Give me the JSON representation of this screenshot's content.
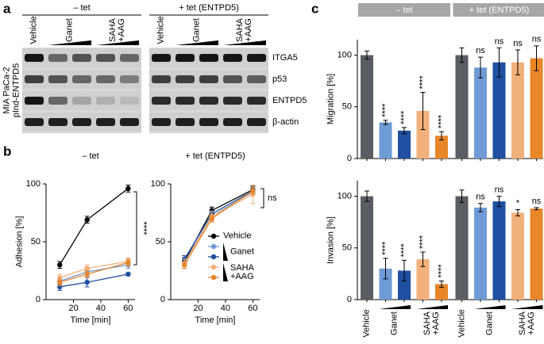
{
  "panel_labels": [
    "a",
    "b",
    "c"
  ],
  "blot": {
    "conditions": [
      "– tet",
      "+ tet (ENTPD5)"
    ],
    "lanes": [
      "Vehicle",
      "Ganet",
      "SAHA\n+AAG"
    ],
    "cell_line": [
      "MIA PaCa-2",
      "pInd-ENTPD5"
    ],
    "proteins": [
      "ITGA5",
      "p53",
      "ENTPD5",
      "β-actin"
    ]
  },
  "chart_data": [
    {
      "type": "line",
      "title": "– tet",
      "xlabel": "Time [min]",
      "ylabel": "Adhesion [%]",
      "x": [
        10,
        30,
        60
      ],
      "xlim": [
        0,
        65
      ],
      "xticks": [
        20,
        40,
        60
      ],
      "ylim": [
        0,
        100
      ],
      "yticks": [
        0,
        50,
        100
      ],
      "series": [
        {
          "name": "Vehicle",
          "color": "#000000",
          "values": [
            30,
            69,
            96
          ],
          "errors": [
            3,
            3,
            3
          ]
        },
        {
          "name": "Ganet",
          "color": "#6f9bd6",
          "values": [
            16,
            24,
            30
          ],
          "errors": [
            3,
            4,
            3
          ]
        },
        {
          "name": "Ganet",
          "color": "#1f4fa0",
          "values": [
            11,
            15,
            22
          ],
          "errors": [
            3,
            4,
            1
          ]
        },
        {
          "name": "SAHA\n+AAG",
          "color": "#f2b07a",
          "values": [
            19,
            27,
            33
          ],
          "errors": [
            3,
            3,
            3
          ]
        },
        {
          "name": "SAHA\n+AAG",
          "color": "#e8862a",
          "values": [
            15,
            22,
            32
          ],
          "errors": [
            3,
            3,
            3
          ]
        }
      ],
      "annotation": "****"
    },
    {
      "type": "line",
      "title": "+ tet (ENTPD5)",
      "xlabel": "Time [min]",
      "x": [
        10,
        30,
        60
      ],
      "xlim": [
        0,
        65
      ],
      "xticks": [
        20,
        40,
        60
      ],
      "ylim": [
        0,
        100
      ],
      "yticks": [
        0,
        50,
        100
      ],
      "series": [
        {
          "name": "Vehicle",
          "color": "#000000",
          "values": [
            33,
            77,
            95
          ],
          "errors": [
            3,
            3,
            3
          ]
        },
        {
          "name": "Ganet",
          "color": "#6f9bd6",
          "values": [
            32,
            72,
            93
          ],
          "errors": [
            3,
            3,
            3
          ]
        },
        {
          "name": "Ganet",
          "color": "#1f4fa0",
          "values": [
            35,
            74,
            94
          ],
          "errors": [
            3,
            3,
            3
          ]
        },
        {
          "name": "SAHA\n+AAG",
          "color": "#f2b07a",
          "values": [
            31,
            72,
            91
          ],
          "errors": [
            4,
            4,
            8
          ]
        },
        {
          "name": "SAHA\n+AAG",
          "color": "#e8862a",
          "values": [
            30,
            70,
            94
          ],
          "errors": [
            3,
            3,
            3
          ]
        }
      ],
      "annotation": "ns",
      "legend": "right"
    },
    {
      "type": "bar",
      "ylabel": "Migration [%]",
      "groups": [
        "– tet",
        "+ tet (ENTPD5)"
      ],
      "values": [
        100,
        35,
        27,
        46,
        22,
        100,
        88,
        93,
        93,
        97
      ],
      "errors": [
        4,
        2,
        3,
        18,
        4,
        7,
        10,
        14,
        12,
        12
      ],
      "annotations": [
        null,
        "****",
        "****",
        "****",
        "****",
        null,
        "ns",
        "ns",
        "ns",
        "ns"
      ],
      "colors": [
        "#5a5d61",
        "#6f9bd6",
        "#1f4fa0",
        "#f2b07a",
        "#e8862a",
        "#5a5d61",
        "#6f9bd6",
        "#1f4fa0",
        "#f2b07a",
        "#e8862a"
      ],
      "ylim": [
        0,
        115
      ],
      "yticks": [
        0,
        50,
        100
      ]
    },
    {
      "type": "bar",
      "ylabel": "Invasion [%]",
      "categories": [
        "Vehicle",
        "Ganet",
        null,
        "SAHA\n+AAG",
        null,
        "Vehicle",
        "Ganet",
        null,
        "SAHA\n+AAG",
        null
      ],
      "values": [
        100,
        30,
        28,
        39,
        15,
        100,
        89,
        95,
        84,
        88
      ],
      "errors": [
        5,
        10,
        10,
        7,
        3,
        6,
        4,
        5,
        3,
        1
      ],
      "annotations": [
        null,
        "****",
        "****",
        "****",
        "****",
        null,
        "ns",
        "ns",
        "*",
        "ns"
      ],
      "colors": [
        "#5a5d61",
        "#6f9bd6",
        "#1f4fa0",
        "#f2b07a",
        "#e8862a",
        "#5a5d61",
        "#6f9bd6",
        "#1f4fa0",
        "#f2b07a",
        "#e8862a"
      ],
      "ylim": [
        0,
        115
      ],
      "yticks": [
        0,
        50,
        100
      ]
    }
  ]
}
